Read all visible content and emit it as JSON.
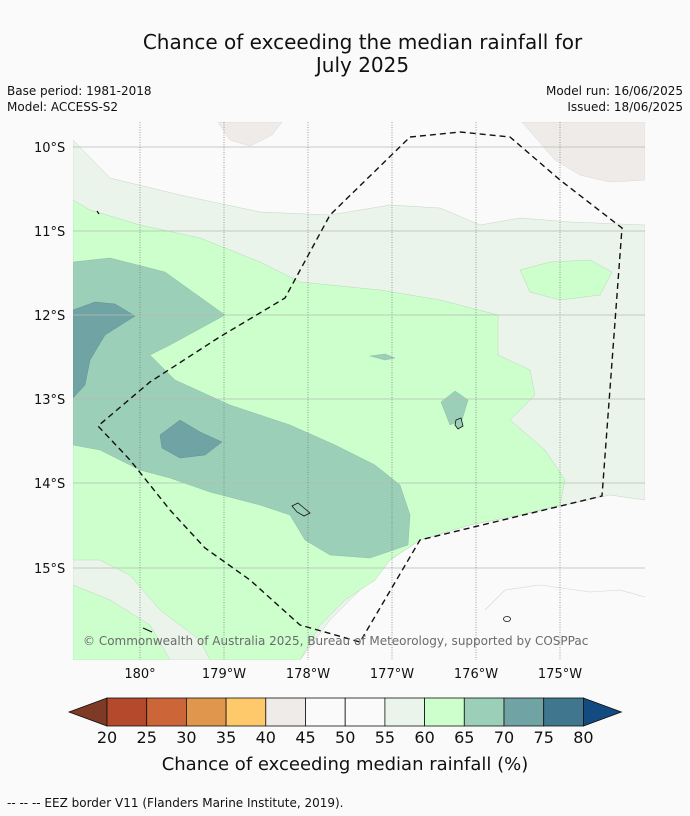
{
  "header": {
    "title_line1": "Chance of exceeding the median rainfall for",
    "title_line2": "July 2025",
    "base_period": "Base period: 1981-2018",
    "model": "Model: ACCESS-S2",
    "model_run": "Model run: 16/06/2025",
    "issued": "Issued: 18/06/2025"
  },
  "map": {
    "lat_labels": [
      "10°S",
      "11°S",
      "12°S",
      "13°S",
      "14°S",
      "15°S"
    ],
    "lon_labels": [
      "180°",
      "179°W",
      "178°W",
      "177°W",
      "176°W",
      "175°W"
    ],
    "copyright": "© Commonwealth of Australia 2025, Bureau of Meteorology, supported by COSPPac"
  },
  "colorbar": {
    "ticks": [
      "20",
      "25",
      "30",
      "35",
      "40",
      "45",
      "50",
      "55",
      "60",
      "65",
      "70",
      "75",
      "80"
    ],
    "colors": [
      "#7e3a24",
      "#b5492b",
      "#cc6538",
      "#e0964c",
      "#fdc96a",
      "#efebe8",
      "#f9faf9",
      "#f9faf9",
      "#eaf4ea",
      "#ccffcc",
      "#9ccfb8",
      "#6fa3a4",
      "#41768f",
      "#134a7f"
    ],
    "label": "Chance of exceeding median rainfall (%)"
  },
  "legend": {
    "eez": "--  --  -- EEZ border V11 (Flanders Marine Institute, 2019)."
  }
}
